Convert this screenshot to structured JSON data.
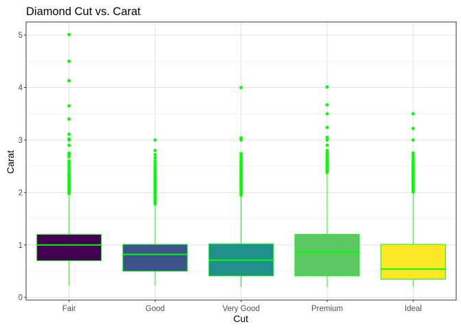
{
  "chart_data": {
    "type": "box",
    "title": "Diamond Cut vs. Carat",
    "xlabel": "Cut",
    "ylabel": "Carat",
    "categories": [
      "Fair",
      "Good",
      "Very Good",
      "Premium",
      "Ideal"
    ],
    "y_ticks": [
      0,
      1,
      2,
      3,
      4,
      5
    ],
    "ylim": [
      -0.05,
      5.25
    ],
    "grid": true,
    "outline_color": "#00ff00",
    "outlier_color": "#00ff00",
    "boxes": [
      {
        "category": "Fair",
        "min": 0.22,
        "q1": 0.7,
        "median": 1.0,
        "q3": 1.2,
        "max": 1.95,
        "fill": "#440154",
        "outliers": [
          1.98,
          2.0,
          2.02,
          2.05,
          2.08,
          2.1,
          2.13,
          2.15,
          2.18,
          2.2,
          2.22,
          2.25,
          2.28,
          2.3,
          2.33,
          2.35,
          2.4,
          2.44,
          2.48,
          2.5,
          2.55,
          2.6,
          2.68,
          2.72,
          2.75,
          2.9,
          3.0,
          3.02,
          3.11,
          3.4,
          3.65,
          4.13,
          4.5,
          5.01
        ]
      },
      {
        "category": "Good",
        "min": 0.23,
        "q1": 0.5,
        "median": 0.82,
        "q3": 1.01,
        "max": 1.76,
        "fill": "#3b528b",
        "outliers": [
          1.78,
          1.8,
          1.82,
          1.85,
          1.88,
          1.9,
          1.92,
          1.95,
          1.98,
          2.0,
          2.02,
          2.05,
          2.08,
          2.1,
          2.12,
          2.15,
          2.18,
          2.2,
          2.22,
          2.25,
          2.28,
          2.3,
          2.33,
          2.36,
          2.4,
          2.43,
          2.47,
          2.5,
          2.55,
          2.6,
          2.66,
          2.72,
          2.8,
          3.0
        ]
      },
      {
        "category": "Very Good",
        "min": 0.2,
        "q1": 0.41,
        "median": 0.71,
        "q3": 1.02,
        "max": 1.93,
        "fill": "#21908c",
        "outliers": [
          1.95,
          1.97,
          2.0,
          2.02,
          2.04,
          2.06,
          2.08,
          2.1,
          2.12,
          2.14,
          2.16,
          2.18,
          2.2,
          2.22,
          2.24,
          2.26,
          2.28,
          2.3,
          2.32,
          2.34,
          2.36,
          2.38,
          2.4,
          2.42,
          2.45,
          2.48,
          2.5,
          2.52,
          2.55,
          2.58,
          2.6,
          2.63,
          2.66,
          2.7,
          2.74,
          3.0,
          3.04,
          4.0
        ]
      },
      {
        "category": "Premium",
        "min": 0.2,
        "q1": 0.41,
        "median": 0.86,
        "q3": 1.2,
        "max": 2.37,
        "fill": "#5dc863",
        "outliers": [
          2.38,
          2.4,
          2.42,
          2.44,
          2.46,
          2.48,
          2.5,
          2.52,
          2.54,
          2.56,
          2.58,
          2.6,
          2.62,
          2.65,
          2.68,
          2.72,
          2.75,
          2.8,
          2.9,
          3.0,
          3.05,
          3.24,
          3.5,
          3.67,
          4.01
        ]
      },
      {
        "category": "Ideal",
        "min": 0.2,
        "q1": 0.35,
        "median": 0.54,
        "q3": 1.01,
        "max": 1.99,
        "fill": "#fde725",
        "outliers": [
          2.01,
          2.03,
          2.05,
          2.07,
          2.1,
          2.12,
          2.14,
          2.16,
          2.18,
          2.2,
          2.22,
          2.24,
          2.26,
          2.28,
          2.3,
          2.32,
          2.34,
          2.36,
          2.38,
          2.4,
          2.42,
          2.45,
          2.48,
          2.5,
          2.52,
          2.55,
          2.58,
          2.6,
          2.65,
          2.7,
          2.75,
          3.0,
          3.22,
          3.5
        ]
      }
    ]
  }
}
